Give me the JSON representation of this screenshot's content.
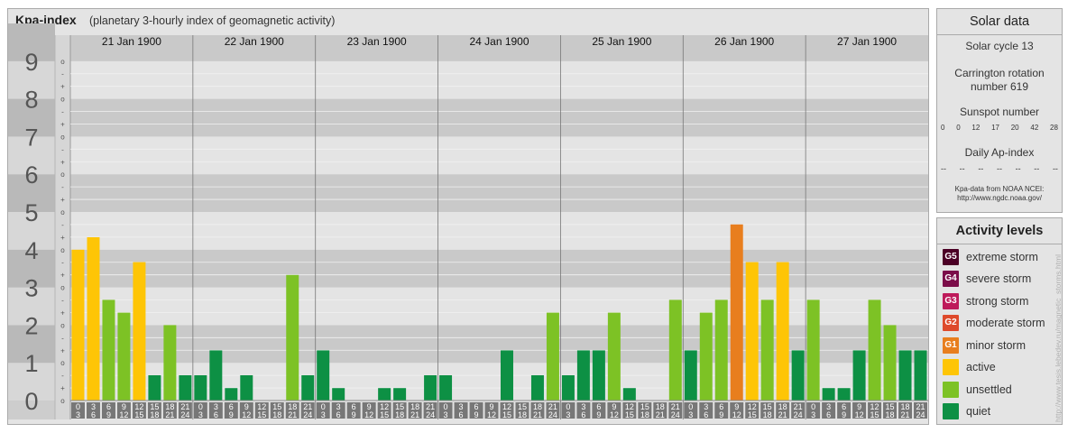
{
  "header": {
    "title": "Kpa-index",
    "subtitle": "(planetary 3-hourly index of geomagnetic activity)"
  },
  "chart_data": {
    "type": "bar",
    "y_ticks": [
      "0",
      "1",
      "2",
      "3",
      "4",
      "5",
      "6",
      "7",
      "8",
      "9"
    ],
    "y_minor_marks": [
      "o",
      "+",
      "-",
      "o",
      "+",
      "-",
      "o",
      "+",
      "-",
      "o",
      "+",
      "-",
      "o",
      "+",
      "-",
      "o",
      "+",
      "-",
      "o",
      "+",
      "-",
      "o",
      "+",
      "-",
      "o",
      "+",
      "-",
      "o"
    ],
    "ylim": [
      0,
      9
    ],
    "days": [
      "21 Jan 1900",
      "22 Jan 1900",
      "23 Jan 1900",
      "24 Jan 1900",
      "25 Jan 1900",
      "26 Jan 1900",
      "27 Jan 1900"
    ],
    "hour_top": [
      "0",
      "3",
      "6",
      "9",
      "12",
      "15",
      "18",
      "21"
    ],
    "hour_bottom": [
      "3",
      "6",
      "9",
      "12",
      "15",
      "18",
      "21",
      "24"
    ],
    "values": [
      4.0,
      4.33,
      2.67,
      2.33,
      3.67,
      0.67,
      2.0,
      0.67,
      0.67,
      1.33,
      0.33,
      0.67,
      0,
      0,
      3.33,
      0.67,
      1.33,
      0.33,
      0,
      0,
      0.33,
      0.33,
      0,
      0.67,
      0.67,
      0,
      0,
      0,
      1.33,
      0,
      0.67,
      2.33,
      0.67,
      1.33,
      1.33,
      2.33,
      0.33,
      0,
      0,
      2.67,
      1.33,
      2.33,
      2.67,
      4.67,
      3.67,
      2.67,
      3.67,
      1.33,
      2.67,
      0.33,
      0.33,
      1.33,
      2.67,
      2.0,
      1.33,
      1.33
    ],
    "colors": {
      "quiet": "#0d9044",
      "unsettled": "#7dc225",
      "active": "#fec506",
      "g1": "#e87e1e",
      "g2": "#de4a2b",
      "g3": "#be1a5a",
      "g4": "#7b0d49",
      "g5": "#4b0025"
    },
    "band_dark": "#c9c9c9",
    "band_light": "#e4e4e4",
    "plot_bg": "#d9d9d9"
  },
  "solar": {
    "title": "Solar data",
    "cycle": "Solar cycle 13",
    "carrington_l1": "Carrington rotation",
    "carrington_l2": "number 619",
    "sunspot_title": "Sunspot number",
    "sunspot_values": [
      "0",
      "0",
      "12",
      "17",
      "20",
      "42",
      "28"
    ],
    "ap_title": "Daily Ap-index",
    "ap_values": [
      "--",
      "--",
      "--",
      "--",
      "--",
      "--",
      "--"
    ],
    "source_l1": "Kpa-data from NOAA NCEI:",
    "source_l2": "http://www.ngdc.noaa.gov/"
  },
  "levels": {
    "title": "Activity levels",
    "items": [
      {
        "code": "G5",
        "label": "extreme storm",
        "color": "#4b0025"
      },
      {
        "code": "G4",
        "label": "severe storm",
        "color": "#7b0d49"
      },
      {
        "code": "G3",
        "label": "strong storm",
        "color": "#be1a5a"
      },
      {
        "code": "G2",
        "label": "moderate storm",
        "color": "#de4a2b"
      },
      {
        "code": "G1",
        "label": "minor storm",
        "color": "#e87e1e"
      },
      {
        "code": "",
        "label": "active",
        "color": "#fec506"
      },
      {
        "code": "",
        "label": "unsettled",
        "color": "#7dc225"
      },
      {
        "code": "",
        "label": "quiet",
        "color": "#0d9044"
      }
    ]
  },
  "credit": "http://www.tesis.lebedev.ru/magnetic_storms.html"
}
